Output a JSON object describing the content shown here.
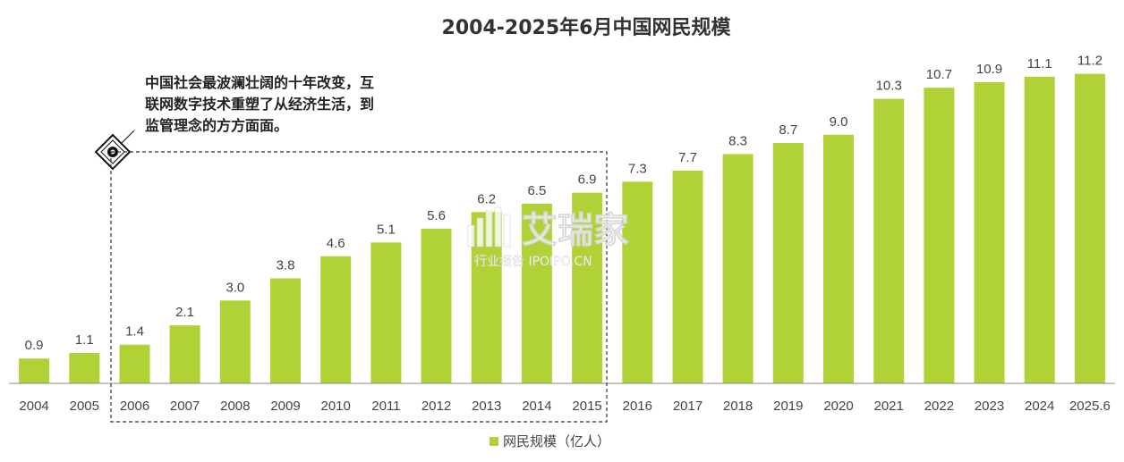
{
  "chart_data": {
    "type": "bar",
    "title": "2004-2025年6月中国网民规模",
    "categories": [
      "2004",
      "2005",
      "2006",
      "2007",
      "2008",
      "2009",
      "2010",
      "2011",
      "2012",
      "2013",
      "2014",
      "2015",
      "2016",
      "2017",
      "2018",
      "2019",
      "2020",
      "2021",
      "2022",
      "2023",
      "2024",
      "2025.6"
    ],
    "series": [
      {
        "name": "网民规模（亿人）",
        "values": [
          0.9,
          1.1,
          1.4,
          2.1,
          3.0,
          3.8,
          4.6,
          5.1,
          5.6,
          6.2,
          6.5,
          6.9,
          7.3,
          7.7,
          8.3,
          8.7,
          9.0,
          10.3,
          10.7,
          10.9,
          11.1,
          11.2
        ],
        "labels": [
          "0.9",
          "1.1",
          "1.4",
          "2.1",
          "3.0",
          "3.8",
          "4.6",
          "5.1",
          "5.6",
          "6.2",
          "6.5",
          "6.9",
          "7.3",
          "7.7",
          "8.3",
          "8.7",
          "9.0",
          "10.3",
          "10.7",
          "10.9",
          "11.1",
          "11.2"
        ],
        "color": "#b0d236"
      }
    ],
    "ylim": [
      0,
      12.0
    ],
    "grid": false,
    "legend_position": "bottom-center",
    "annotation": {
      "lines": [
        "中国社会最波澜壮阔的十年改变，互",
        "联网数字技术重塑了从经济生活，到",
        "监管理念的方方面面。"
      ],
      "highlight_range": [
        "2006",
        "2015"
      ]
    }
  },
  "watermark": {
    "main": "艾瑞家",
    "sub": "行业报告 IPOIPO.CN"
  },
  "colors": {
    "bar": "#b0d236",
    "axis": "#888888",
    "text": "#444444",
    "title": "#333333"
  }
}
